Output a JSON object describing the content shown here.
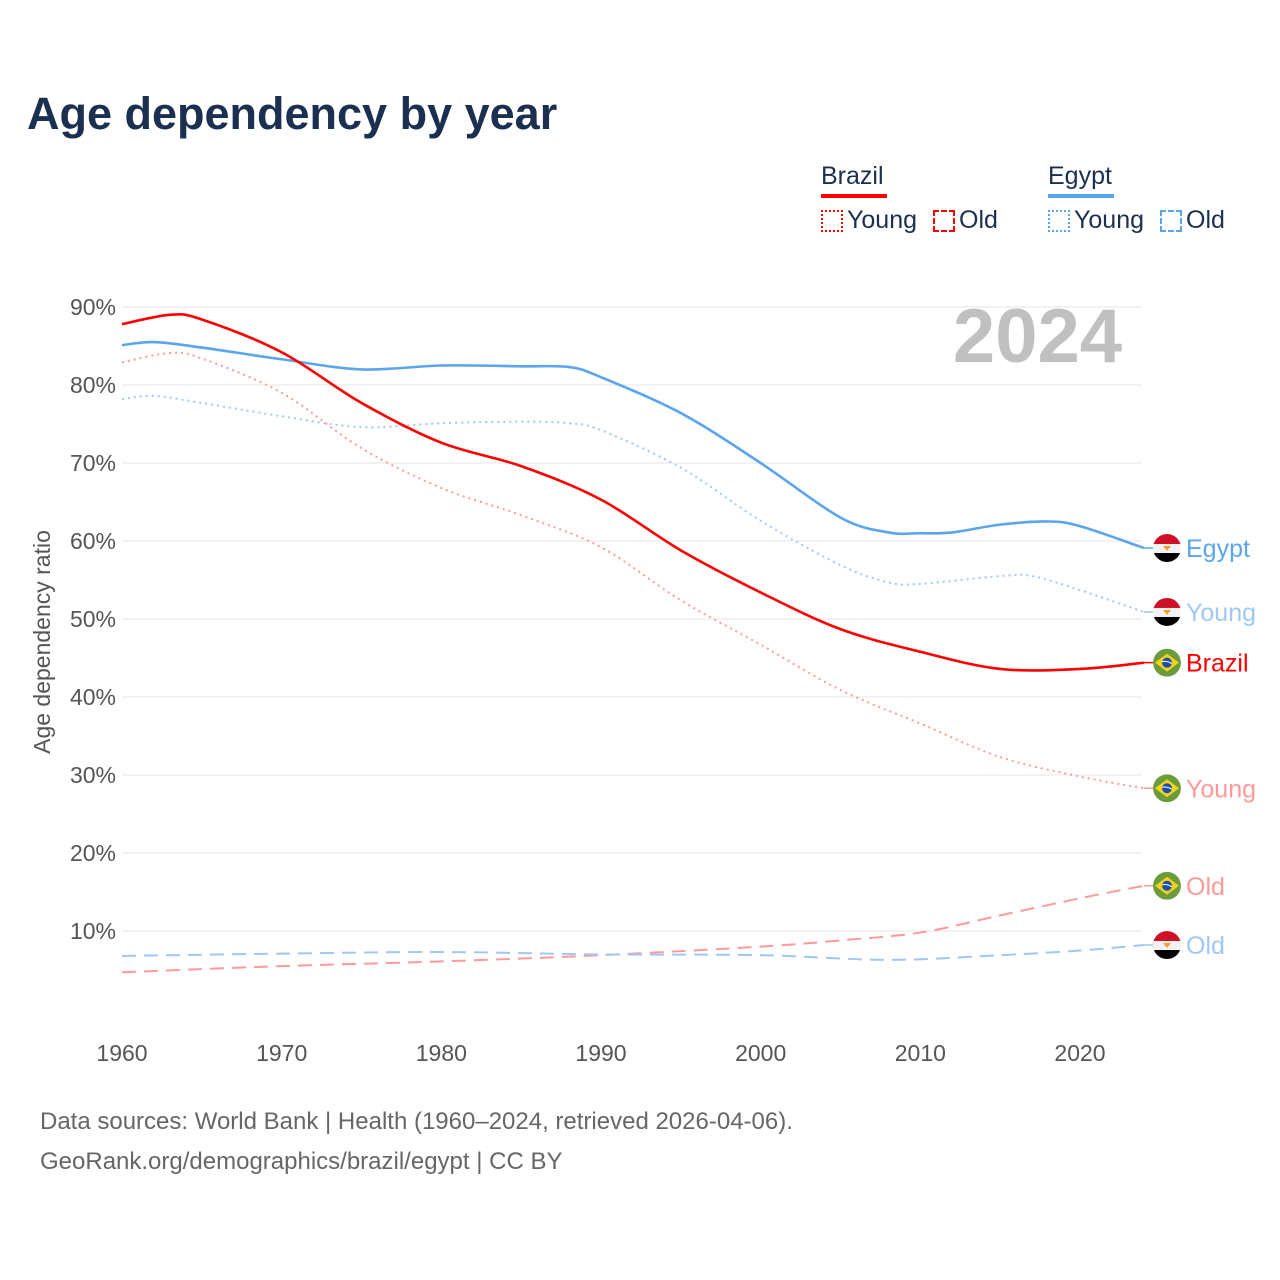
{
  "title": "Age dependency by year",
  "legend": {
    "groups": [
      {
        "name": "Brazil",
        "color": "#ff0000",
        "items": [
          {
            "label": "Young",
            "style": "dotted"
          },
          {
            "label": "Old",
            "style": "dashed"
          }
        ]
      },
      {
        "name": "Egypt",
        "color": "#5ba5ec",
        "items": [
          {
            "label": "Young",
            "style": "dotted"
          },
          {
            "label": "Old",
            "style": "dashed"
          }
        ]
      }
    ]
  },
  "year_watermark": "2024",
  "footer": {
    "line1": "Data sources: World Bank | Health (1960–2024, retrieved 2026-04-06).",
    "line2": "GeoRank.org/demographics/brazil/egypt | CC BY"
  },
  "chart_data": {
    "type": "line",
    "title": "Age dependency by year",
    "xlabel": "",
    "ylabel": "Age dependency ratio",
    "xlim": [
      1960,
      2024
    ],
    "ylim": [
      0,
      90
    ],
    "xticks": [
      1960,
      1970,
      1980,
      1990,
      2000,
      2010,
      2020
    ],
    "yticks": [
      10,
      20,
      30,
      40,
      50,
      60,
      70,
      80,
      90
    ],
    "ytick_labels": [
      "10%",
      "20%",
      "30%",
      "40%",
      "50%",
      "60%",
      "70%",
      "80%",
      "90%"
    ],
    "grid": true,
    "series": [
      {
        "name": "Egypt",
        "end_label": "Egypt",
        "country": "egypt",
        "color": "#5ba5ec",
        "style": "solid",
        "x": [
          1960,
          1962,
          1965,
          1970,
          1975,
          1980,
          1985,
          1988,
          1990,
          1995,
          2000,
          2005,
          2008,
          2010,
          2012,
          2015,
          2018,
          2020,
          2024
        ],
        "y": [
          85.1,
          85.5,
          84.8,
          83.3,
          82.0,
          82.5,
          82.4,
          82.3,
          81.0,
          76.4,
          70.0,
          63.0,
          61.1,
          61.0,
          61.1,
          62.1,
          62.5,
          61.9,
          59.1
        ]
      },
      {
        "name": "Egypt Young",
        "end_label": "Young",
        "country": "egypt",
        "color": "#9fc8f3",
        "style": "dotted",
        "x": [
          1960,
          1962,
          1965,
          1970,
          1975,
          1980,
          1985,
          1988,
          1990,
          1995,
          2000,
          2005,
          2008,
          2010,
          2015,
          2017,
          2020,
          2024
        ],
        "y": [
          78.2,
          78.6,
          77.7,
          76.0,
          74.6,
          75.1,
          75.3,
          75.1,
          74.2,
          69.4,
          62.6,
          56.9,
          54.7,
          54.5,
          55.5,
          55.5,
          53.7,
          50.9
        ]
      },
      {
        "name": "Brazil",
        "end_label": "Brazil",
        "country": "brazil",
        "color": "#ff0000",
        "style": "solid",
        "x": [
          1960,
          1963,
          1965,
          1970,
          1975,
          1980,
          1985,
          1990,
          1995,
          2000,
          2005,
          2010,
          2015,
          2020,
          2024
        ],
        "y": [
          87.8,
          89.0,
          88.4,
          84.2,
          77.7,
          72.6,
          69.6,
          65.3,
          58.8,
          53.4,
          48.7,
          45.8,
          43.6,
          43.6,
          44.4
        ]
      },
      {
        "name": "Brazil Young",
        "end_label": "Young",
        "country": "brazil",
        "color": "#ff9a9a",
        "style": "dotted",
        "x": [
          1960,
          1963,
          1965,
          1970,
          1975,
          1980,
          1985,
          1990,
          1995,
          2000,
          2005,
          2010,
          2015,
          2020,
          2024
        ],
        "y": [
          82.9,
          84.1,
          83.4,
          79.0,
          71.9,
          66.8,
          63.3,
          59.2,
          52.4,
          46.7,
          40.9,
          36.6,
          32.3,
          29.8,
          28.3
        ]
      },
      {
        "name": "Brazil Old",
        "end_label": "Old",
        "country": "brazil",
        "color": "#ff9a9a",
        "style": "dashed",
        "x": [
          1960,
          1970,
          1980,
          1990,
          2000,
          2005,
          2010,
          2015,
          2020,
          2024
        ],
        "y": [
          4.7,
          5.5,
          6.1,
          6.9,
          8.0,
          8.8,
          9.8,
          12.0,
          14.2,
          15.8
        ]
      },
      {
        "name": "Egypt Old",
        "end_label": "Old",
        "country": "egypt",
        "color": "#9fc8f3",
        "style": "dashed",
        "x": [
          1960,
          1970,
          1980,
          1990,
          2000,
          2008,
          2015,
          2020,
          2024
        ],
        "y": [
          6.8,
          7.1,
          7.3,
          7.0,
          6.9,
          6.3,
          6.9,
          7.5,
          8.2
        ]
      }
    ]
  }
}
